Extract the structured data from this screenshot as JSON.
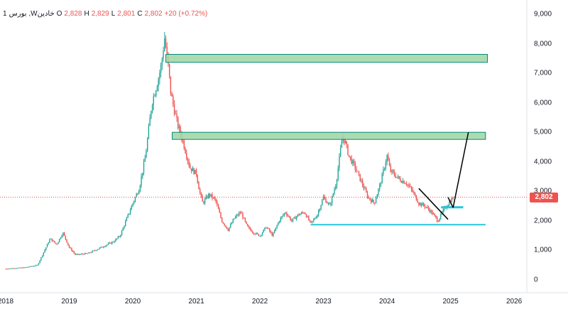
{
  "legend": {
    "interval": "1",
    "symbol": "بورس ,Wخادین",
    "open_label": "O",
    "open": "2,828",
    "high_label": "H",
    "high": "2,829",
    "low_label": "L",
    "low": "2,801",
    "close_label": "C",
    "close": "2,802",
    "change": "+20 (+0.72%)"
  },
  "colors": {
    "up": "#26a69a",
    "down": "#ef5350",
    "zone_fill": "#a5d6a7",
    "zone_border": "#00897b",
    "support": "#26c6da",
    "trendline": "#000000",
    "price_line": "#ef5350",
    "axis_text": "#131722"
  },
  "price_label": "2,802",
  "chart_data": {
    "type": "candlestick",
    "y_axis": {
      "ticks": [
        0,
        1000,
        2000,
        3000,
        4000,
        5000,
        6000,
        7000,
        8000,
        9000
      ],
      "tick_labels": [
        "0",
        "1,000",
        "2,000",
        "3,000",
        "4,000",
        "5,000",
        "6,000",
        "7,000",
        "8,000",
        "9,000"
      ],
      "range": [
        0,
        9000
      ],
      "position": "right"
    },
    "x_axis": {
      "ticks": [
        2018,
        2019,
        2020,
        2021,
        2022,
        2023,
        2024,
        2025,
        2026
      ],
      "tick_labels": [
        "2018",
        "2019",
        "2020",
        "2021",
        "2022",
        "2023",
        "2024",
        "2025",
        "2026"
      ],
      "range": [
        2018.0,
        2026.2
      ]
    },
    "last_price": 2802,
    "price_path": [
      [
        2018.0,
        380
      ],
      [
        2018.3,
        420
      ],
      [
        2018.5,
        500
      ],
      [
        2018.7,
        1400
      ],
      [
        2018.8,
        1200
      ],
      [
        2018.9,
        1600
      ],
      [
        2019.0,
        1100
      ],
      [
        2019.1,
        850
      ],
      [
        2019.3,
        900
      ],
      [
        2019.5,
        1100
      ],
      [
        2019.7,
        1300
      ],
      [
        2019.8,
        1500
      ],
      [
        2020.0,
        2600
      ],
      [
        2020.1,
        3100
      ],
      [
        2020.2,
        4200
      ],
      [
        2020.3,
        6000
      ],
      [
        2020.4,
        6800
      ],
      [
        2020.45,
        7300
      ],
      [
        2020.5,
        8200
      ],
      [
        2020.55,
        7400
      ],
      [
        2020.6,
        6300
      ],
      [
        2020.7,
        5300
      ],
      [
        2020.8,
        4600
      ],
      [
        2020.9,
        3800
      ],
      [
        2021.0,
        3600
      ],
      [
        2021.05,
        3000
      ],
      [
        2021.1,
        2600
      ],
      [
        2021.2,
        2900
      ],
      [
        2021.3,
        2700
      ],
      [
        2021.4,
        2000
      ],
      [
        2021.5,
        1700
      ],
      [
        2021.6,
        2100
      ],
      [
        2021.7,
        2300
      ],
      [
        2021.8,
        1800
      ],
      [
        2021.9,
        1600
      ],
      [
        2022.0,
        1500
      ],
      [
        2022.1,
        1800
      ],
      [
        2022.2,
        1500
      ],
      [
        2022.3,
        2000
      ],
      [
        2022.4,
        2300
      ],
      [
        2022.5,
        2000
      ],
      [
        2022.6,
        2200
      ],
      [
        2022.7,
        2300
      ],
      [
        2022.8,
        1900
      ],
      [
        2022.9,
        2200
      ],
      [
        2023.0,
        2800
      ],
      [
        2023.1,
        2500
      ],
      [
        2023.2,
        3300
      ],
      [
        2023.3,
        4900
      ],
      [
        2023.35,
        4600
      ],
      [
        2023.4,
        4200
      ],
      [
        2023.5,
        3800
      ],
      [
        2023.6,
        3300
      ],
      [
        2023.7,
        2800
      ],
      [
        2023.8,
        2600
      ],
      [
        2023.9,
        3300
      ],
      [
        2024.0,
        4200
      ],
      [
        2024.05,
        3700
      ],
      [
        2024.1,
        3600
      ],
      [
        2024.2,
        3400
      ],
      [
        2024.3,
        3300
      ],
      [
        2024.4,
        3000
      ],
      [
        2024.5,
        2600
      ],
      [
        2024.6,
        2500
      ],
      [
        2024.7,
        2300
      ],
      [
        2024.8,
        2000
      ],
      [
        2024.85,
        2200
      ],
      [
        2024.9,
        2400
      ],
      [
        2025.0,
        2700
      ],
      [
        2025.05,
        2802
      ]
    ],
    "zones": [
      {
        "x": [
          2020.52,
          2025.58
        ],
        "y": [
          7370,
          7640
        ]
      },
      {
        "x": [
          2020.62,
          2025.55
        ],
        "y": [
          4760,
          5000
        ]
      }
    ],
    "support_line": {
      "x": [
        2022.8,
        2025.55
      ],
      "y": 1870
    },
    "support_segment": {
      "x": [
        2024.85,
        2025.2
      ],
      "y": 2460
    },
    "trendlines": [
      {
        "x": [
          2024.5,
          2024.96
        ],
        "y": [
          3100,
          2050
        ]
      },
      {
        "x": [
          2024.96,
          2025.04
        ],
        "y": [
          2800,
          2450
        ]
      },
      {
        "x": [
          2025.04,
          2025.28
        ],
        "y": [
          2450,
          5000
        ]
      }
    ]
  }
}
